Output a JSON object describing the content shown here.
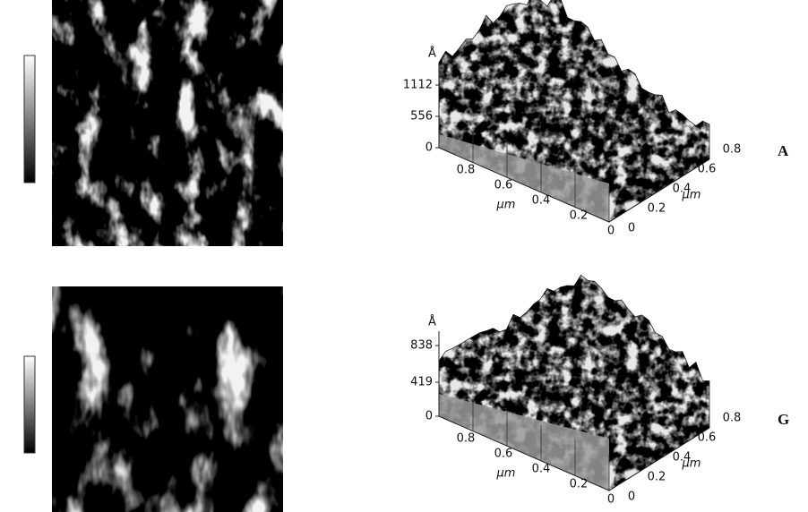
{
  "panels": [
    {
      "label": "A",
      "z_unit": "Å",
      "z_ticks": [
        "1112",
        "556",
        "0"
      ],
      "x_ticks": [
        "0.8",
        "0.6",
        "0.4",
        "0.2",
        "0"
      ],
      "x_unit": "µm",
      "y_ticks": [
        "0",
        "0.2",
        "0.4",
        "0.6",
        "0.8"
      ],
      "y_unit": "µm"
    },
    {
      "label": "G",
      "z_unit": "Å",
      "z_ticks": [
        "838",
        "419",
        "0"
      ],
      "x_ticks": [
        "0.8",
        "0.6",
        "0.4",
        "0.2",
        "0"
      ],
      "x_unit": "µm",
      "y_ticks": [
        "0",
        "0.2",
        "0.4",
        "0.6",
        "0.8"
      ],
      "y_unit": "µm"
    }
  ]
}
